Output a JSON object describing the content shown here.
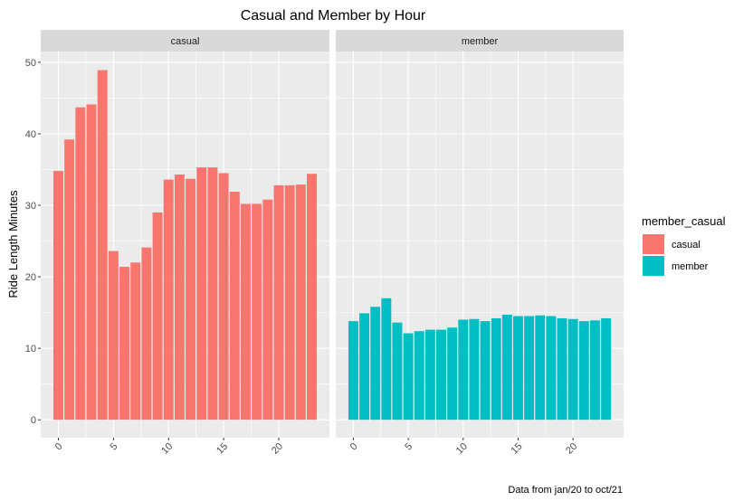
{
  "chart_data": {
    "type": "bar",
    "title": "Casual and Member by Hour",
    "xlabel": "",
    "ylabel": "Ride Length Minutes",
    "caption": "Data from jan/20 to oct/21",
    "ylim": [
      -2.5,
      51.5
    ],
    "y_ticks": [
      0,
      10,
      20,
      30,
      40,
      50
    ],
    "x_ticks": [
      0,
      5,
      10,
      15,
      20
    ],
    "xlim": [
      -1.6,
      24.6
    ],
    "grid": true,
    "legend": {
      "title": "member_casual",
      "position": "right",
      "entries": [
        {
          "label": "casual",
          "color": "#F8766D"
        },
        {
          "label": "member",
          "color": "#00BFC4"
        }
      ]
    },
    "panels": [
      {
        "name": "casual",
        "color": "#F8766D",
        "x": [
          0,
          1,
          2,
          3,
          4,
          5,
          6,
          7,
          8,
          9,
          10,
          11,
          12,
          13,
          14,
          15,
          16,
          17,
          18,
          19,
          20,
          21,
          22,
          23
        ],
        "values": [
          34.8,
          39.2,
          43.7,
          44.1,
          48.9,
          23.6,
          21.4,
          22.0,
          24.1,
          29.0,
          33.6,
          34.3,
          33.7,
          35.3,
          35.3,
          34.5,
          31.9,
          30.2,
          30.2,
          30.8,
          32.8,
          32.8,
          32.9,
          34.4
        ]
      },
      {
        "name": "member",
        "color": "#00BFC4",
        "x": [
          0,
          1,
          2,
          3,
          4,
          5,
          6,
          7,
          8,
          9,
          10,
          11,
          12,
          13,
          14,
          15,
          16,
          17,
          18,
          19,
          20,
          21,
          22,
          23
        ],
        "values": [
          13.8,
          14.9,
          15.8,
          17.0,
          13.6,
          12.1,
          12.4,
          12.6,
          12.6,
          12.9,
          14.0,
          14.1,
          13.8,
          14.2,
          14.7,
          14.5,
          14.5,
          14.6,
          14.5,
          14.2,
          14.1,
          13.8,
          13.9,
          14.2
        ]
      }
    ]
  }
}
